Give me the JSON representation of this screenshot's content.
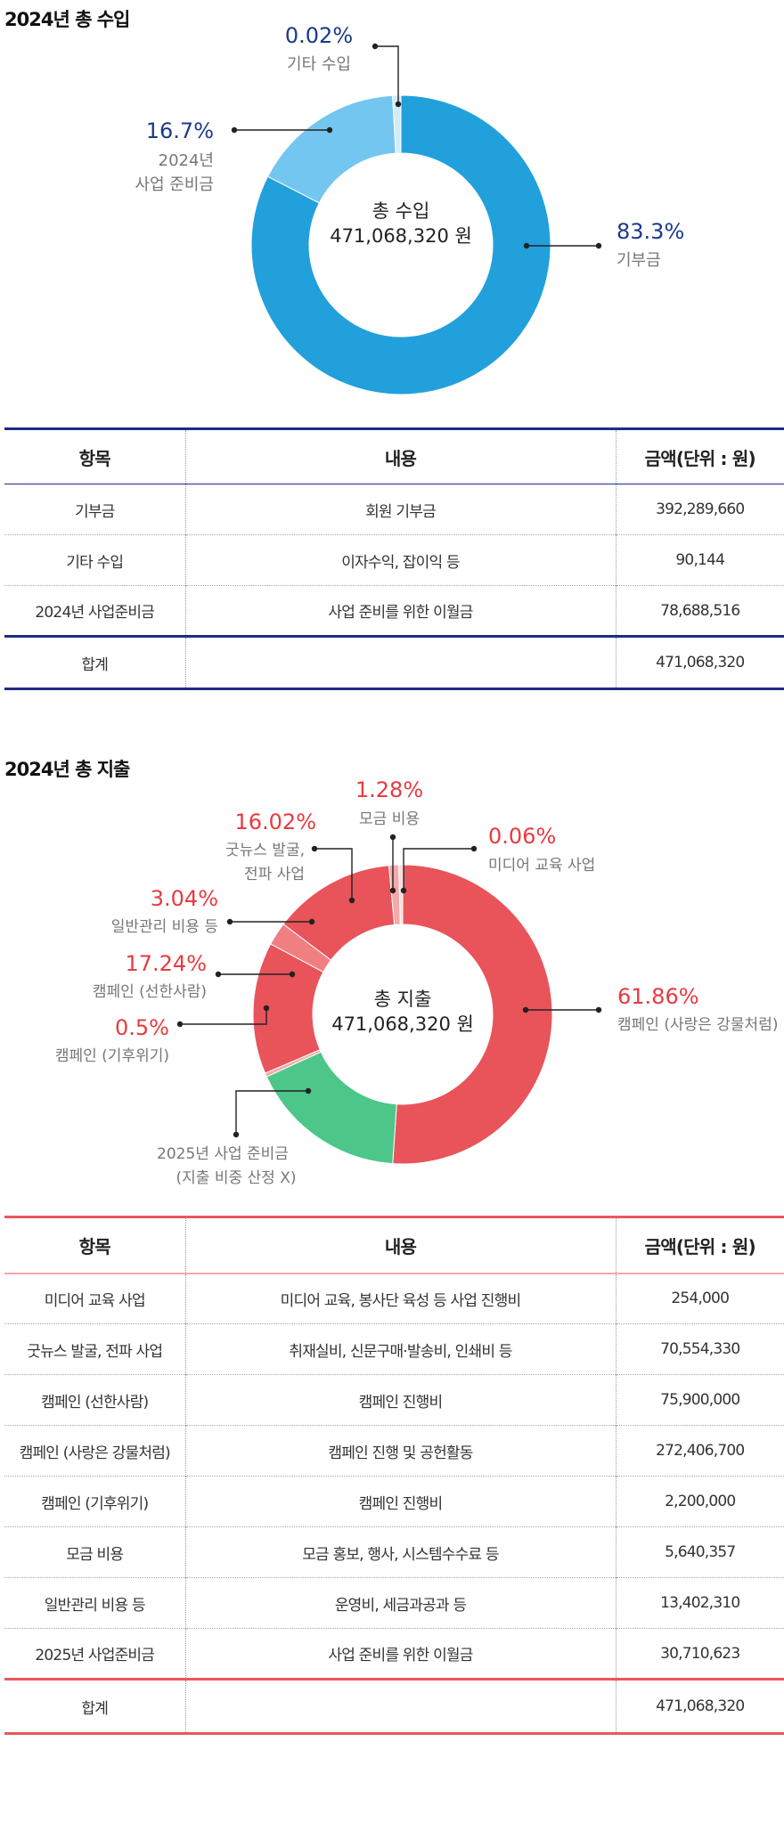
{
  "income": {
    "title": "2024년 총 수입",
    "center": {
      "label": "총 수입",
      "value": "471,068,320 원"
    },
    "chart_data": {
      "type": "pie",
      "title": "2024년 총 수입",
      "slices": [
        {
          "label": "기부금",
          "pct": 83.3,
          "pct_label": "83.3%",
          "color": "#22a0dc"
        },
        {
          "label": "2024년 사업 준비금",
          "pct": 16.7,
          "pct_label": "16.7%",
          "color": "#73c6ef"
        },
        {
          "label": "기타 수입",
          "pct": 0.02,
          "pct_label": "0.02%",
          "color": "#d2ecf8"
        }
      ],
      "pct_color": "#1b3a8c"
    },
    "labels": {
      "donation": {
        "pct": "83.3%",
        "name": "기부금"
      },
      "reserve": {
        "pct": "16.7%",
        "line1": "2024년",
        "line2": "사업 준비금"
      },
      "other": {
        "pct": "0.02%",
        "name": "기타 수입"
      }
    },
    "table": {
      "headers": [
        "항목",
        "내용",
        "금액(단위 : 원)"
      ],
      "rows": [
        [
          "기부금",
          "회원 기부금",
          "392,289,660"
        ],
        [
          "기타 수입",
          "이자수익, 잡이익 등",
          "90,144"
        ],
        [
          "2024년 사업준비금",
          "사업 준비를 위한 이월금",
          "78,688,516"
        ]
      ],
      "total": [
        "합계",
        "",
        "471,068,320"
      ]
    }
  },
  "expense": {
    "title": "2024년 총 지출",
    "center": {
      "label": "총 지출",
      "value": "471,068,320 원"
    },
    "chart_data": {
      "type": "pie",
      "title": "2024년 총 지출",
      "slices": [
        {
          "label": "캠페인 (사랑은 강물처럼)",
          "pct": 61.86,
          "pct_label": "61.86%",
          "color": "#e8545a"
        },
        {
          "label": "2025년 사업 준비금 (지출 비중 산정 X)",
          "pct": 20.7,
          "pct_label": "",
          "color": "#4cc789"
        },
        {
          "label": "캠페인 (기후위기)",
          "pct": 0.5,
          "pct_label": "0.5%",
          "color": "#f4a9ab"
        },
        {
          "label": "캠페인 (선한사람)",
          "pct": 17.24,
          "pct_label": "17.24%",
          "color": "#e8545a"
        },
        {
          "label": "일반관리 비용 등",
          "pct": 3.04,
          "pct_label": "3.04%",
          "color": "#f07f82"
        },
        {
          "label": "굿뉴스 발굴, 전파 사업",
          "pct": 16.02,
          "pct_label": "16.02%",
          "color": "#e8545a"
        },
        {
          "label": "모금 비용",
          "pct": 1.28,
          "pct_label": "1.28%",
          "color": "#f4a9ab"
        },
        {
          "label": "미디어 교육 사업",
          "pct": 0.06,
          "pct_label": "0.06%",
          "color": "#fbd9da"
        }
      ],
      "pct_color": "#e83a40"
    },
    "labels": {
      "love": {
        "pct": "61.86%",
        "name": "캠페인 (사랑은 강물처럼)"
      },
      "climate": {
        "pct": "0.5%",
        "name": "캠페인 (기후위기)"
      },
      "good_people": {
        "pct": "17.24%",
        "name": "캠페인 (선한사람)"
      },
      "admin": {
        "pct": "3.04%",
        "name": "일반관리 비용 등"
      },
      "goodnews": {
        "pct": "16.02%",
        "line1": "굿뉴스 발굴,",
        "line2": "전파 사업"
      },
      "fundraising": {
        "pct": "1.28%",
        "name": "모금 비용"
      },
      "media": {
        "pct": "0.06%",
        "name": "미디어 교육 사업"
      },
      "reserve2025": {
        "line1": "2025년 사업 준비금",
        "line2": "(지출 비중 산정 X)"
      }
    },
    "table": {
      "headers": [
        "항목",
        "내용",
        "금액(단위 : 원)"
      ],
      "rows": [
        [
          "미디어 교육 사업",
          "미디어 교육, 봉사단 육성 등 사업 진행비",
          "254,000"
        ],
        [
          "굿뉴스 발굴, 전파 사업",
          "취재실비, 신문구매·발송비, 인쇄비 등",
          "70,554,330"
        ],
        [
          "캠페인 (선한사람)",
          "캠페인 진행비",
          "75,900,000"
        ],
        [
          "캠페인 (사랑은 강물처럼)",
          "캠페인 진행 및 공헌활동",
          "272,406,700"
        ],
        [
          "캠페인 (기후위기)",
          "캠페인 진행비",
          "2,200,000"
        ],
        [
          "모금 비용",
          "모금 홍보, 행사, 시스템수수료 등",
          "5,640,357"
        ],
        [
          "일반관리 비용 등",
          "운영비, 세금과공과 등",
          "13,402,310"
        ],
        [
          "2025년 사업준비금",
          "사업 준비를 위한 이월금",
          "30,710,623"
        ]
      ],
      "total": [
        "합계",
        "",
        "471,068,320"
      ]
    }
  }
}
